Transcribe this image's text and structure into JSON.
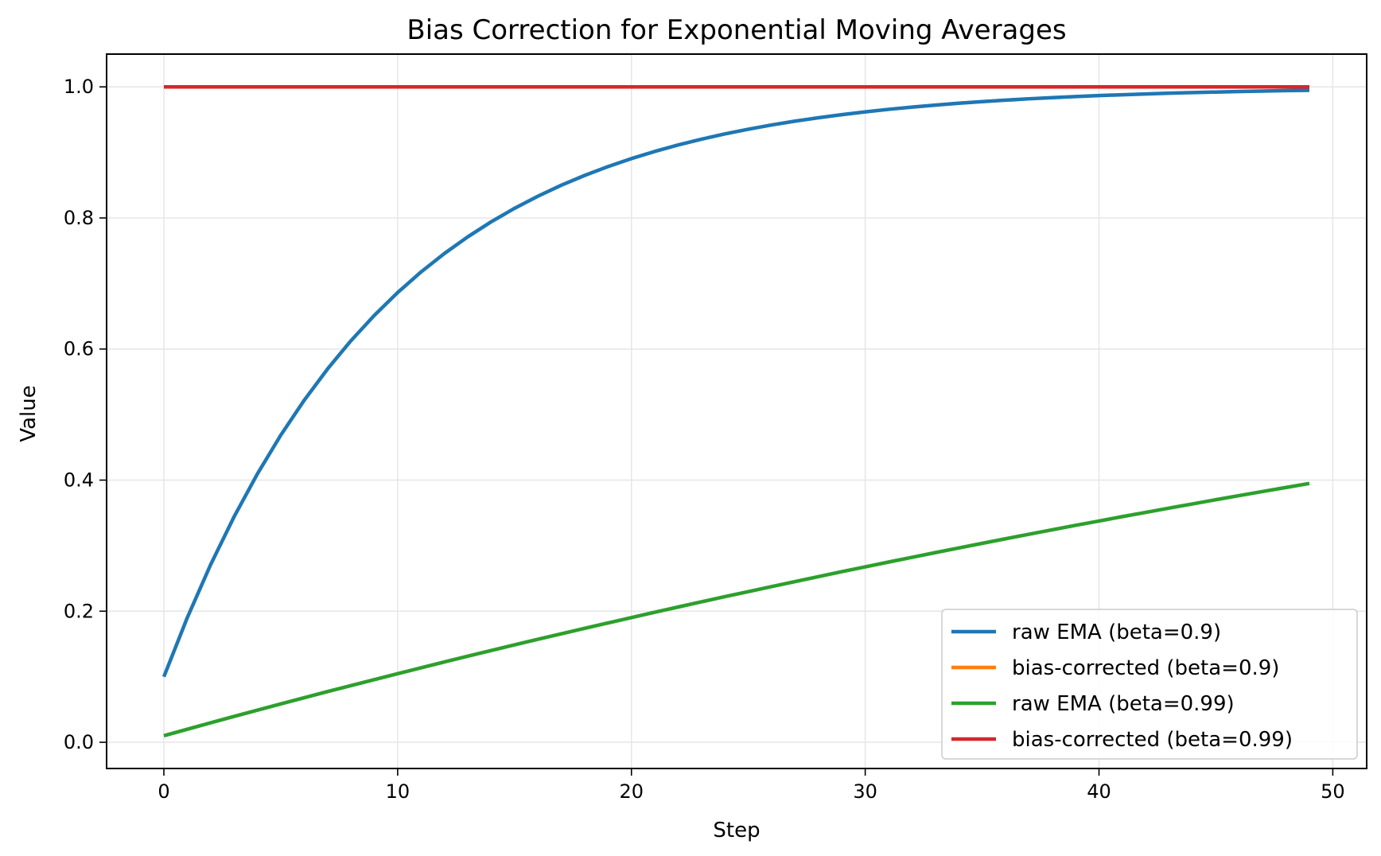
{
  "chart_data": {
    "type": "line",
    "title": "Bias Correction for Exponential Moving Averages",
    "xlabel": "Step",
    "ylabel": "Value",
    "xlim": [
      -2.45,
      51.45
    ],
    "ylim": [
      -0.04,
      1.05
    ],
    "xticks": [
      0,
      10,
      20,
      30,
      40,
      50
    ],
    "xtick_labels": [
      "0",
      "10",
      "20",
      "30",
      "40",
      "50"
    ],
    "yticks": [
      0.0,
      0.2,
      0.4,
      0.6,
      0.8,
      1.0
    ],
    "ytick_labels": [
      "0.0",
      "0.2",
      "0.4",
      "0.6",
      "0.8",
      "1.0"
    ],
    "grid": true,
    "legend_position": "lower-right",
    "x": [
      0,
      1,
      2,
      3,
      4,
      5,
      6,
      7,
      8,
      9,
      10,
      11,
      12,
      13,
      14,
      15,
      16,
      17,
      18,
      19,
      20,
      21,
      22,
      23,
      24,
      25,
      26,
      27,
      28,
      29,
      30,
      31,
      32,
      33,
      34,
      35,
      36,
      37,
      38,
      39,
      40,
      41,
      42,
      43,
      44,
      45,
      46,
      47,
      48,
      49
    ],
    "series": [
      {
        "name": "raw EMA (beta=0.9)",
        "color": "#1f77b4",
        "values": [
          0.1,
          0.19,
          0.271,
          0.3439,
          0.4095,
          0.4686,
          0.5217,
          0.5695,
          0.6126,
          0.6513,
          0.6862,
          0.7176,
          0.7458,
          0.7712,
          0.7941,
          0.8147,
          0.8332,
          0.8499,
          0.8649,
          0.8784,
          0.8906,
          0.9015,
          0.9114,
          0.9202,
          0.9282,
          0.9354,
          0.9419,
          0.9477,
          0.9529,
          0.9576,
          0.9618,
          0.9657,
          0.9691,
          0.9722,
          0.975,
          0.9775,
          0.9797,
          0.9818,
          0.9836,
          0.9852,
          0.9867,
          0.988,
          0.9892,
          0.9903,
          0.9913,
          0.9921,
          0.9929,
          0.9936,
          0.9943,
          0.9948
        ]
      },
      {
        "name": "bias-corrected (beta=0.9)",
        "color": "#ff7f0e",
        "values": [
          1,
          1,
          1,
          1,
          1,
          1,
          1,
          1,
          1,
          1,
          1,
          1,
          1,
          1,
          1,
          1,
          1,
          1,
          1,
          1,
          1,
          1,
          1,
          1,
          1,
          1,
          1,
          1,
          1,
          1,
          1,
          1,
          1,
          1,
          1,
          1,
          1,
          1,
          1,
          1,
          1,
          1,
          1,
          1,
          1,
          1,
          1,
          1,
          1,
          1
        ]
      },
      {
        "name": "raw EMA (beta=0.99)",
        "color": "#2ca02c",
        "values": [
          0.01,
          0.0199,
          0.0297,
          0.0394,
          0.049,
          0.0585,
          0.0679,
          0.0773,
          0.0865,
          0.0956,
          0.1047,
          0.1136,
          0.1225,
          0.1313,
          0.14,
          0.1486,
          0.1571,
          0.1655,
          0.1738,
          0.1821,
          0.1903,
          0.1984,
          0.2064,
          0.2143,
          0.2222,
          0.2299,
          0.2376,
          0.2452,
          0.2528,
          0.2603,
          0.2676,
          0.275,
          0.2822,
          0.2894,
          0.2965,
          0.3035,
          0.3105,
          0.3174,
          0.3242,
          0.331,
          0.3376,
          0.3443,
          0.3508,
          0.3573,
          0.3637,
          0.3701,
          0.3764,
          0.3826,
          0.3888,
          0.3949
        ]
      },
      {
        "name": "bias-corrected (beta=0.99)",
        "color": "#d62728",
        "values": [
          1,
          1,
          1,
          1,
          1,
          1,
          1,
          1,
          1,
          1,
          1,
          1,
          1,
          1,
          1,
          1,
          1,
          1,
          1,
          1,
          1,
          1,
          1,
          1,
          1,
          1,
          1,
          1,
          1,
          1,
          1,
          1,
          1,
          1,
          1,
          1,
          1,
          1,
          1,
          1,
          1,
          1,
          1,
          1,
          1,
          1,
          1,
          1,
          1,
          1
        ]
      }
    ]
  }
}
